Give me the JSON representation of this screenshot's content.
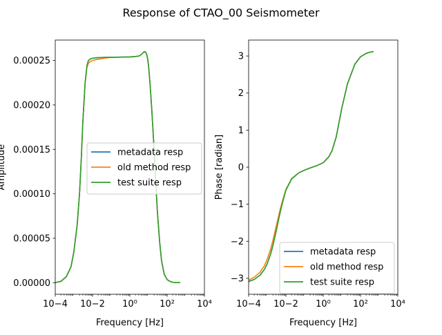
{
  "figure": {
    "title": "Response of CTAO_00 Seismometer"
  },
  "chart_data": [
    {
      "type": "line",
      "xscale": "log",
      "xlabel": "Frequency [Hz]",
      "ylabel": "Amplitude",
      "xlim": [
        0.0001,
        10000
      ],
      "ylim": [
        -1.3e-05,
        0.000273
      ],
      "xticks": [
        0.0001,
        0.01,
        1,
        100,
        10000
      ],
      "xtick_labels": [
        "10−4",
        "10−2",
        "10⁰",
        "10²",
        "10⁴"
      ],
      "yticks": [
        0,
        5e-05,
        0.0001,
        0.00015,
        0.0002,
        0.00025
      ],
      "ytick_labels": [
        "0.00000",
        "0.00005",
        "0.00010",
        "0.00015",
        "0.00020",
        "0.00025"
      ],
      "legend_position": "center-right",
      "series": [
        {
          "name": "metadata resp",
          "color": "#1f77b4",
          "x": [
            0.0001,
            0.0002,
            0.0004,
            0.0007,
            0.001,
            0.0015,
            0.002,
            0.0025,
            0.003,
            0.004,
            0.005,
            0.006,
            0.008,
            0.01,
            0.015,
            0.02,
            0.05,
            0.1,
            1,
            2,
            3,
            4,
            5,
            6,
            7,
            8,
            9,
            10,
            12,
            15,
            20,
            25,
            30,
            40,
            50,
            70,
            100,
            150,
            200,
            300,
            400,
            500
          ],
          "y": [
            1e-07,
            1.5e-06,
            7e-06,
            1.8e-05,
            3.5e-05,
            6.5e-05,
            0.0001,
            0.00014,
            0.00018,
            0.000225,
            0.000244,
            0.00025,
            0.000252,
            0.0002525,
            0.000253,
            0.0002532,
            0.0002535,
            0.0002536,
            0.000254,
            0.0002545,
            0.000255,
            0.0002565,
            0.0002585,
            0.00026,
            0.0002595,
            0.000257,
            0.000252,
            0.000245,
            0.000225,
            0.000195,
            0.00015,
            0.00011,
            8e-05,
            4.5e-05,
            2.5e-05,
            9.5e-06,
            3.5e-06,
            1.2e-06,
            5e-07,
            2e-07,
            8e-08,
            5e-08
          ]
        },
        {
          "name": "old method resp",
          "color": "#ff7f0e",
          "x": [
            0.0001,
            0.0002,
            0.0004,
            0.0007,
            0.001,
            0.0015,
            0.002,
            0.0025,
            0.003,
            0.004,
            0.005,
            0.006,
            0.008,
            0.01,
            0.015,
            0.02,
            0.03,
            0.05,
            0.1,
            1,
            2,
            3,
            4,
            5,
            6,
            7,
            8,
            9,
            10,
            12,
            15,
            20,
            25,
            30,
            40,
            50,
            70,
            100,
            150,
            200,
            300,
            400,
            500
          ],
          "y": [
            1e-07,
            1.5e-06,
            7e-06,
            1.8e-05,
            3.5e-05,
            6.5e-05,
            0.0001,
            0.00014,
            0.00018,
            0.000225,
            0.000242,
            0.000247,
            0.000249,
            0.00025,
            0.000251,
            0.0002515,
            0.000252,
            0.0002528,
            0.0002534,
            0.000254,
            0.0002545,
            0.000255,
            0.0002565,
            0.0002585,
            0.00026,
            0.0002595,
            0.000257,
            0.000252,
            0.000245,
            0.000225,
            0.000195,
            0.00015,
            0.00011,
            8e-05,
            4.5e-05,
            2.5e-05,
            9.5e-06,
            3.5e-06,
            1.2e-06,
            5e-07,
            2e-07,
            8e-08,
            5e-08
          ]
        },
        {
          "name": "test suite resp",
          "color": "#2ca02c",
          "x": [
            0.0001,
            0.0002,
            0.0004,
            0.0007,
            0.001,
            0.0015,
            0.002,
            0.0025,
            0.003,
            0.004,
            0.005,
            0.006,
            0.008,
            0.01,
            0.015,
            0.02,
            0.05,
            0.1,
            1,
            2,
            3,
            4,
            5,
            6,
            7,
            8,
            9,
            10,
            12,
            15,
            20,
            25,
            30,
            40,
            50,
            70,
            100,
            150,
            200,
            300,
            400,
            500
          ],
          "y": [
            1e-07,
            1.5e-06,
            7e-06,
            1.8e-05,
            3.5e-05,
            6.5e-05,
            0.0001,
            0.00014,
            0.00018,
            0.000225,
            0.000244,
            0.00025,
            0.000252,
            0.0002525,
            0.000253,
            0.0002532,
            0.0002535,
            0.0002536,
            0.000254,
            0.0002545,
            0.000255,
            0.0002565,
            0.0002585,
            0.00026,
            0.0002595,
            0.000257,
            0.000252,
            0.000245,
            0.000225,
            0.000195,
            0.00015,
            0.00011,
            8e-05,
            4.5e-05,
            2.5e-05,
            9.5e-06,
            3.5e-06,
            1.2e-06,
            5e-07,
            2e-07,
            8e-08,
            5e-08
          ]
        }
      ]
    },
    {
      "type": "line",
      "xscale": "log",
      "xlabel": "Frequency [Hz]",
      "ylabel": "Phase [radian]",
      "xlim": [
        0.0001,
        10000
      ],
      "ylim": [
        -3.43,
        3.43
      ],
      "xticks": [
        0.0001,
        0.01,
        1,
        100,
        10000
      ],
      "xtick_labels": [
        "10−4",
        "10−2",
        "10⁰",
        "10²",
        "10⁴"
      ],
      "yticks": [
        -3,
        -2,
        -1,
        0,
        1,
        2,
        3
      ],
      "ytick_labels": [
        "−3",
        "−2",
        "−1",
        "0",
        "1",
        "2",
        "3"
      ],
      "legend_position": "lower-right",
      "series": [
        {
          "name": "metadata resp",
          "color": "#1f77b4",
          "x": [
            0.0001,
            0.0002,
            0.0004,
            0.0007,
            0.001,
            0.0015,
            0.002,
            0.003,
            0.005,
            0.007,
            0.01,
            0.02,
            0.05,
            0.1,
            0.2,
            0.5,
            1,
            2,
            3,
            5,
            7,
            10,
            20,
            50,
            100,
            200,
            300,
            500
          ],
          "y": [
            -3.09,
            -3.03,
            -2.92,
            -2.76,
            -2.6,
            -2.35,
            -2.12,
            -1.72,
            -1.2,
            -0.9,
            -0.62,
            -0.32,
            -0.15,
            -0.08,
            -0.02,
            0.05,
            0.12,
            0.28,
            0.45,
            0.82,
            1.2,
            1.6,
            2.25,
            2.78,
            2.98,
            3.07,
            3.1,
            3.12
          ]
        },
        {
          "name": "old method resp",
          "color": "#ff7f0e",
          "x": [
            0.0001,
            0.0002,
            0.0004,
            0.0007,
            0.001,
            0.0015,
            0.002,
            0.003,
            0.005,
            0.007,
            0.01,
            0.02,
            0.05,
            0.1,
            0.2,
            0.5,
            1,
            2,
            3,
            5,
            7,
            10,
            20,
            50,
            100,
            200,
            300,
            500
          ],
          "y": [
            -3.05,
            -2.97,
            -2.84,
            -2.66,
            -2.48,
            -2.22,
            -1.98,
            -1.6,
            -1.12,
            -0.86,
            -0.6,
            -0.31,
            -0.15,
            -0.08,
            -0.02,
            0.05,
            0.12,
            0.28,
            0.45,
            0.82,
            1.2,
            1.6,
            2.25,
            2.78,
            2.98,
            3.07,
            3.1,
            3.12
          ]
        },
        {
          "name": "test suite resp",
          "color": "#2ca02c",
          "x": [
            0.0001,
            0.0002,
            0.0004,
            0.0007,
            0.001,
            0.0015,
            0.002,
            0.003,
            0.005,
            0.007,
            0.01,
            0.02,
            0.05,
            0.1,
            0.2,
            0.5,
            1,
            2,
            3,
            5,
            7,
            10,
            20,
            50,
            100,
            200,
            300,
            500
          ],
          "y": [
            -3.09,
            -3.03,
            -2.92,
            -2.76,
            -2.6,
            -2.35,
            -2.12,
            -1.72,
            -1.2,
            -0.9,
            -0.62,
            -0.32,
            -0.15,
            -0.08,
            -0.02,
            0.05,
            0.12,
            0.28,
            0.45,
            0.82,
            1.2,
            1.6,
            2.25,
            2.78,
            2.98,
            3.07,
            3.1,
            3.12
          ]
        }
      ]
    }
  ]
}
